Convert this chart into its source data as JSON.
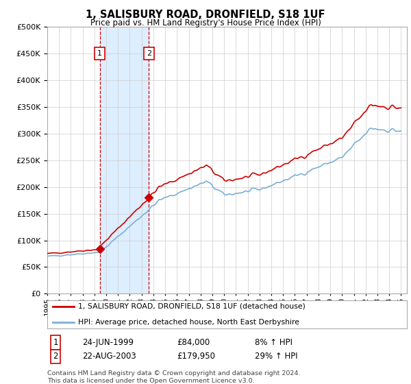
{
  "title": "1, SALISBURY ROAD, DRONFIELD, S18 1UF",
  "subtitle": "Price paid vs. HM Land Registry's House Price Index (HPI)",
  "legend_line1": "1, SALISBURY ROAD, DRONFIELD, S18 1UF (detached house)",
  "legend_line2": "HPI: Average price, detached house, North East Derbyshire",
  "transaction1_date": "24-JUN-1999",
  "transaction1_price": 84000,
  "transaction1_hpi": "8% ↑ HPI",
  "transaction1_year": 1999.458,
  "transaction2_date": "22-AUG-2003",
  "transaction2_price": 179950,
  "transaction2_hpi": "29% ↑ HPI",
  "transaction2_year": 2003.625,
  "footer": "Contains HM Land Registry data © Crown copyright and database right 2024.\nThis data is licensed under the Open Government Licence v3.0.",
  "red_color": "#cc0000",
  "blue_color": "#7bafd4",
  "shading_color": "#ddeeff",
  "ylim": [
    0,
    500000
  ],
  "yticks": [
    0,
    50000,
    100000,
    150000,
    200000,
    250000,
    300000,
    350000,
    400000,
    450000,
    500000
  ],
  "background_color": "#ffffff"
}
